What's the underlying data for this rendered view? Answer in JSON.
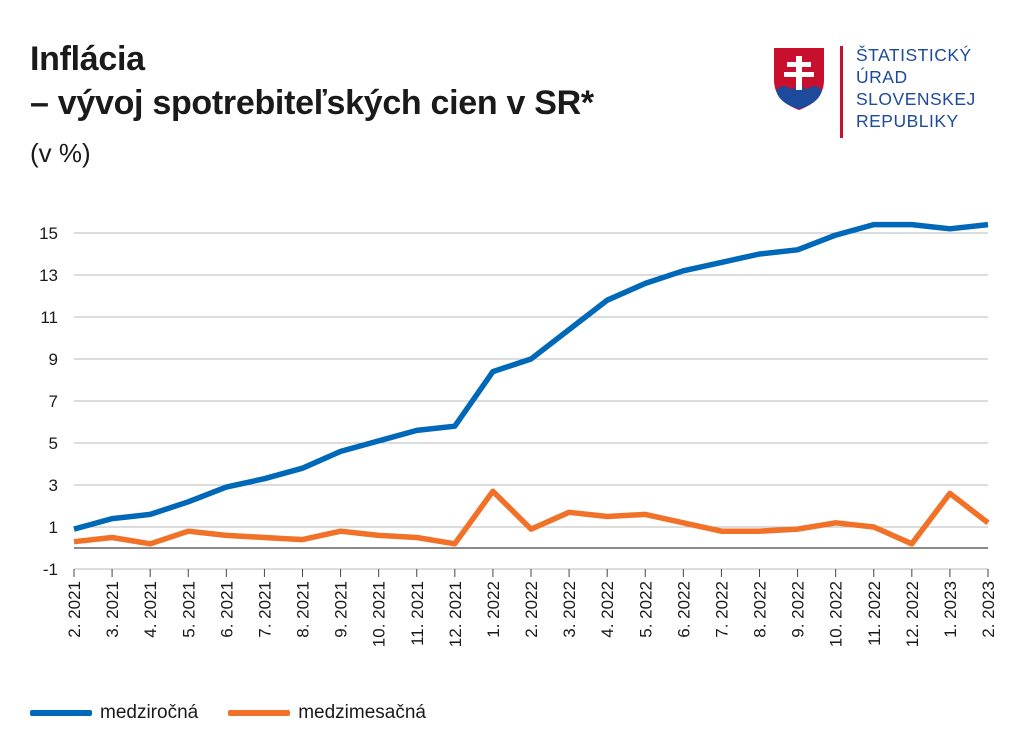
{
  "header": {
    "title_line1": "Inflácia",
    "title_line2": "– vývoj spotrebiteľských cien v SR*",
    "subtitle": "(v %)"
  },
  "logo": {
    "lines": [
      "ŠTATISTICKÝ",
      "ÚRAD",
      "SLOVENSKEJ",
      "REPUBLIKY"
    ],
    "text_color": "#1d4a9a",
    "accent_color": "#c8102e"
  },
  "chart_data": {
    "type": "line",
    "title": "",
    "xlabel": "",
    "ylabel": "",
    "ylim": [
      -1,
      16
    ],
    "yticks": [
      -1,
      1,
      3,
      5,
      7,
      9,
      11,
      13,
      15
    ],
    "grid": true,
    "legend_position": "bottom-left",
    "categories": [
      "2. 2021",
      "3. 2021",
      "4. 2021",
      "5. 2021",
      "6. 2021",
      "7. 2021",
      "8. 2021",
      "9. 2021",
      "10. 2021",
      "11. 2021",
      "12. 2021",
      "1. 2022",
      "2. 2022",
      "3. 2022",
      "4. 2022",
      "5. 2022",
      "6. 2022",
      "7. 2022",
      "8. 2022",
      "9. 2022",
      "10. 2022",
      "11. 2022",
      "12. 2022",
      "1. 2023",
      "2. 2023"
    ],
    "series": [
      {
        "name": "medziročná",
        "color": "#0068b8",
        "values": [
          0.9,
          1.4,
          1.6,
          2.2,
          2.9,
          3.3,
          3.8,
          4.6,
          5.1,
          5.6,
          5.8,
          8.4,
          9.0,
          10.4,
          11.8,
          12.6,
          13.2,
          13.6,
          14.0,
          14.2,
          14.9,
          15.4,
          15.4,
          15.2,
          15.4
        ]
      },
      {
        "name": "medzimesačná",
        "color": "#f07127",
        "values": [
          0.3,
          0.5,
          0.2,
          0.8,
          0.6,
          0.5,
          0.4,
          0.8,
          0.6,
          0.5,
          0.2,
          2.7,
          0.9,
          1.7,
          1.5,
          1.6,
          1.2,
          0.8,
          0.8,
          0.9,
          1.2,
          1.0,
          0.2,
          2.6,
          1.2
        ]
      }
    ]
  }
}
